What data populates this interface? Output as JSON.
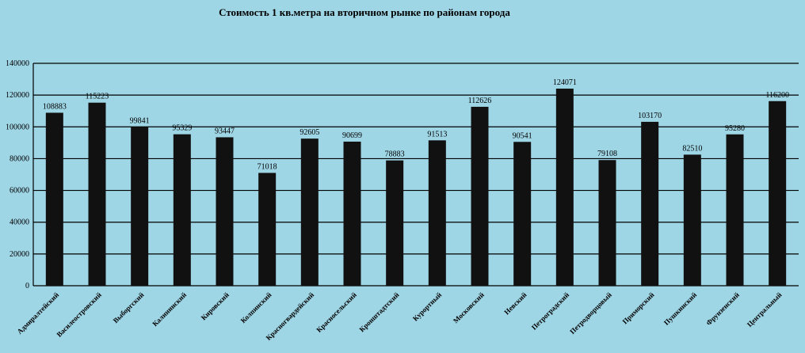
{
  "chart_data": {
    "type": "bar",
    "title": "Стоимость 1 кв.метра на вторичном  рынке  по районам  города",
    "xlabel": "",
    "ylabel": "",
    "ylim": [
      0,
      140000
    ],
    "yticks": [
      0,
      20000,
      40000,
      60000,
      80000,
      100000,
      120000,
      140000
    ],
    "grid": true,
    "legend": "none",
    "bar_color": "#111111",
    "background": "#9fd6e6",
    "categories": [
      "Адмиралтейский",
      "Василеостровский",
      "Выборгский",
      "Калининский",
      "Кировский",
      "Колпинский",
      "Красногвардейский",
      "Красносельский",
      "Кронштадтский",
      "Курортный",
      "Московский",
      "Невский",
      "Петроградский",
      "Петродворцовый",
      "Приморский",
      "Пушкинский",
      "Фрунзенский",
      "Центральный"
    ],
    "values": [
      108883,
      115223,
      99841,
      95329,
      93447,
      71018,
      92605,
      90699,
      78883,
      91513,
      112626,
      90541,
      124071,
      79108,
      103170,
      82510,
      95280,
      116200
    ]
  }
}
